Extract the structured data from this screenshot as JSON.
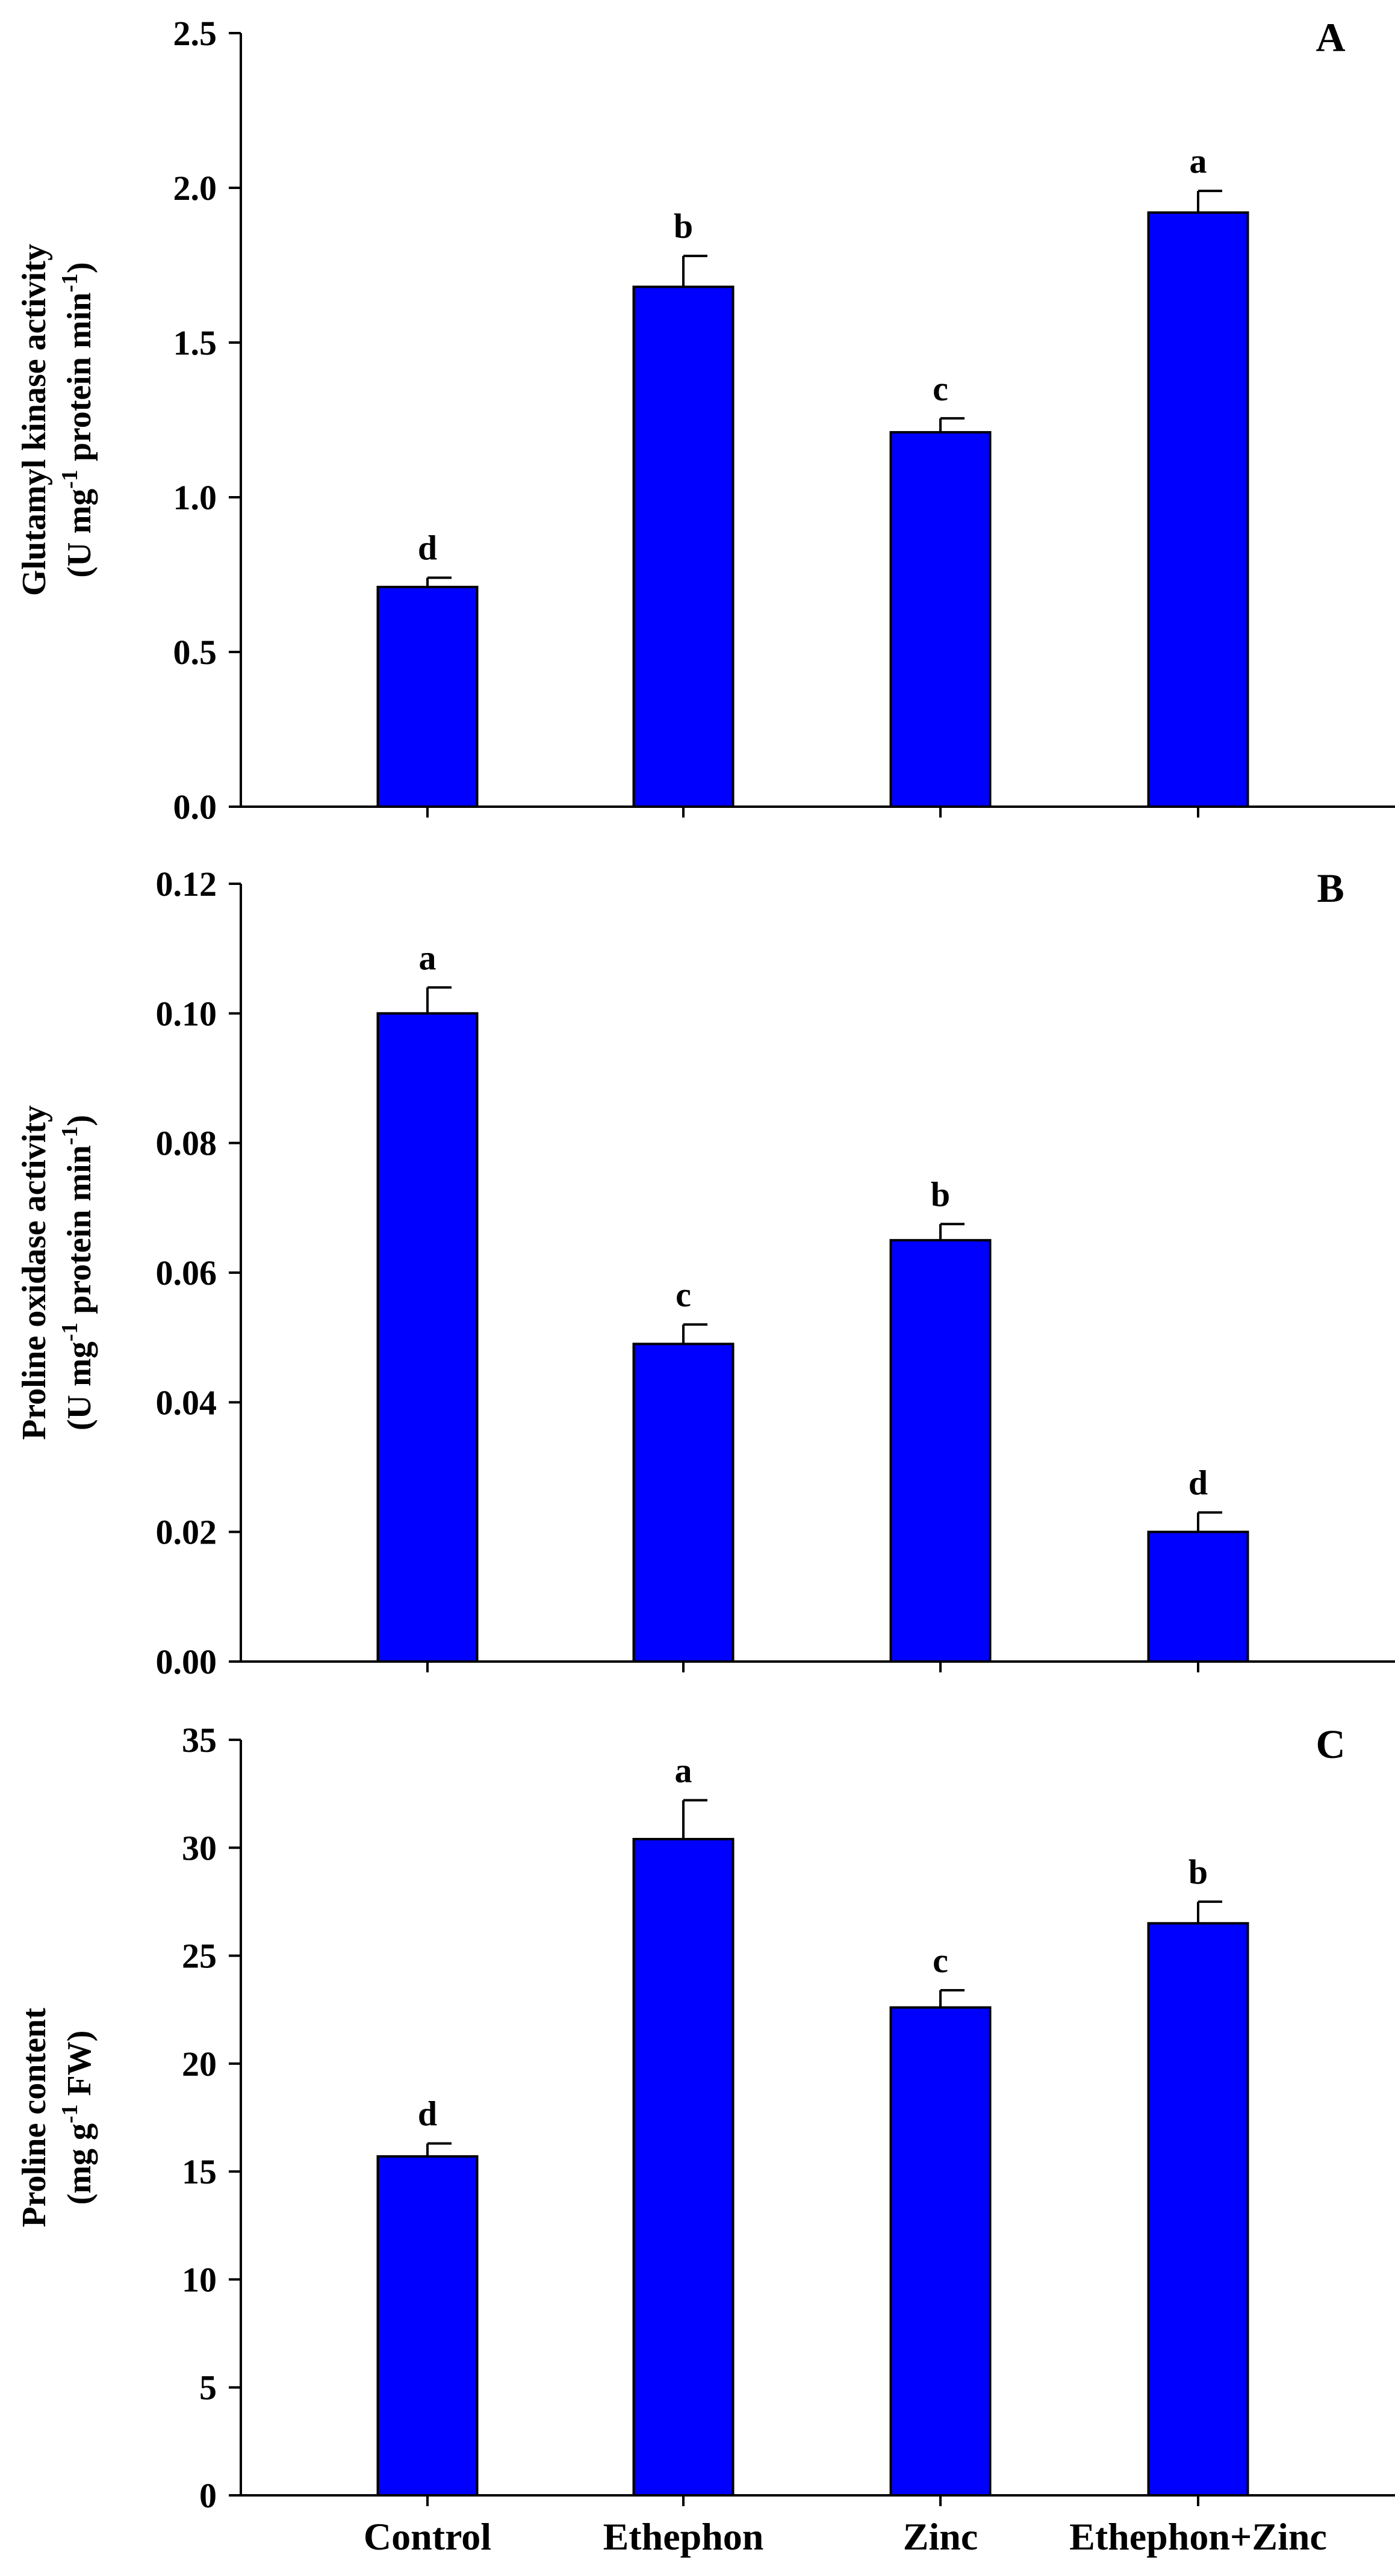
{
  "chart_data": [
    {
      "type": "bar",
      "panel_label": "A",
      "categories": [
        "Control",
        "Ethephon",
        "Zinc",
        "Ethephon+Zinc"
      ],
      "values": [
        0.71,
        1.68,
        1.21,
        1.92
      ],
      "errors": [
        0.03,
        0.1,
        0.045,
        0.07
      ],
      "significance": [
        "d",
        "b",
        "c",
        "a"
      ],
      "ylabel": [
        "Glutamyl kinase activity",
        "(U mg",
        "-1",
        " protein min",
        "-1",
        ")"
      ],
      "ylim": [
        0,
        2.5
      ],
      "yticks": [
        "0.0",
        "0.5",
        "1.0",
        "1.5",
        "2.0",
        "2.5"
      ],
      "show_category_labels": false,
      "bar_color": "#0000ff"
    },
    {
      "type": "bar",
      "panel_label": "B",
      "categories": [
        "Control",
        "Ethephon",
        "Zinc",
        "Ethephon+Zinc"
      ],
      "values": [
        0.1,
        0.049,
        0.065,
        0.02
      ],
      "errors": [
        0.004,
        0.003,
        0.0025,
        0.003
      ],
      "significance": [
        "a",
        "c",
        "b",
        "d"
      ],
      "ylabel": [
        "Proline oxidase activity",
        "(U mg",
        "-1",
        " protein min",
        "-1",
        ")"
      ],
      "ylim": [
        0,
        0.12
      ],
      "yticks": [
        "0.00",
        "0.02",
        "0.04",
        "0.06",
        "0.08",
        "0.10",
        "0.12"
      ],
      "show_category_labels": false,
      "bar_color": "#0000ff"
    },
    {
      "type": "bar",
      "panel_label": "C",
      "categories": [
        "Control",
        "Ethephon",
        "Zinc",
        "Ethephon+Zinc"
      ],
      "values": [
        15.7,
        30.4,
        22.6,
        26.5
      ],
      "errors": [
        0.6,
        1.8,
        0.8,
        1.0
      ],
      "significance": [
        "d",
        "a",
        "c",
        "b"
      ],
      "ylabel": [
        "Proline content",
        "(mg g",
        "-1",
        " FW)",
        "",
        ""
      ],
      "ylim": [
        0,
        35
      ],
      "yticks": [
        "0",
        "5",
        "10",
        "15",
        "20",
        "25",
        "30",
        "35"
      ],
      "show_category_labels": true,
      "bar_color": "#0000ff"
    }
  ]
}
